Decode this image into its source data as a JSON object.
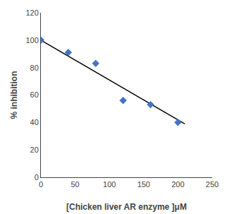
{
  "chart_data": {
    "type": "scatter",
    "xlabel": "[Chicken liver AR enzyme ]μM",
    "ylabel": "% inhibition",
    "series": [
      {
        "type": "scatter",
        "marker": "diamond",
        "color": "#4472C4",
        "x": [
          0,
          40,
          80,
          120,
          160,
          200
        ],
        "values": [
          100,
          91,
          83,
          56,
          53,
          40
        ]
      },
      {
        "type": "line",
        "line_style": "solid",
        "color": "#000000",
        "x": [
          0,
          210
        ],
        "values": [
          100,
          39
        ]
      }
    ],
    "xlim": [
      0,
      250
    ],
    "xticks": [
      0,
      50,
      100,
      150,
      200,
      250
    ],
    "ylim": [
      0,
      120
    ],
    "yticks": [
      0,
      20,
      40,
      60,
      80,
      100,
      120
    ],
    "grid": false
  }
}
